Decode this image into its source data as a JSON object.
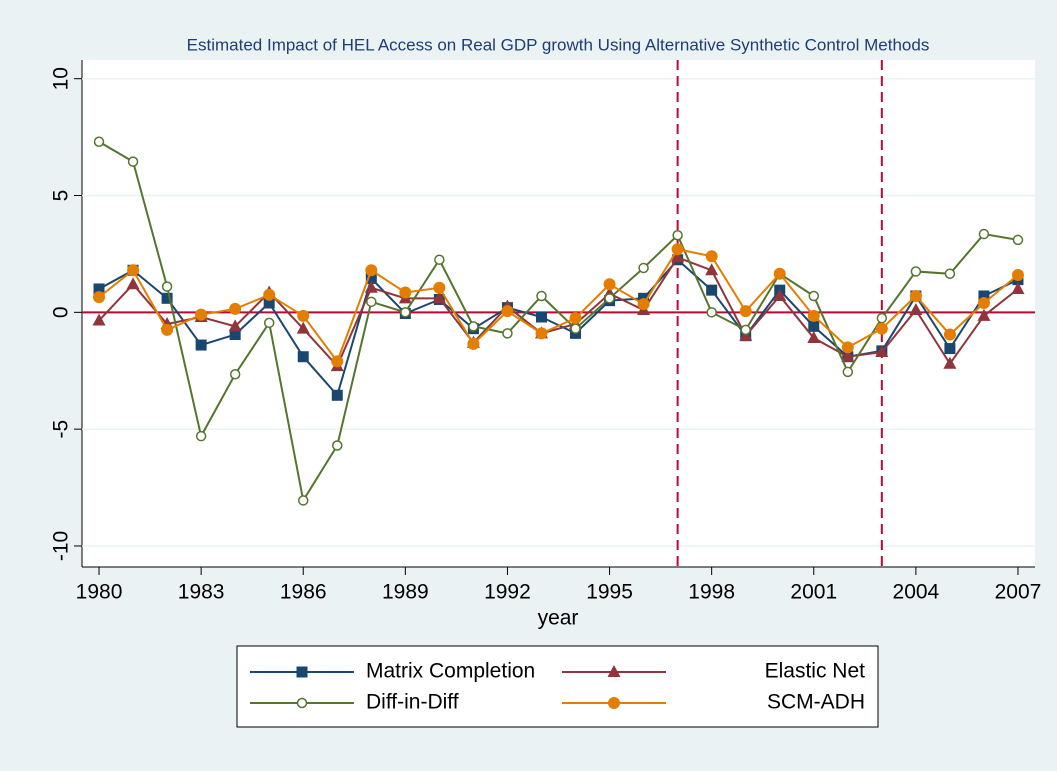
{
  "chart_data": {
    "type": "line",
    "title": "Estimated Impact of HEL Access on Real GDP growth Using Alternative Synthetic Control Methods",
    "x_label": "year",
    "x": [
      1980,
      1981,
      1982,
      1983,
      1984,
      1985,
      1986,
      1987,
      1988,
      1989,
      1990,
      1991,
      1992,
      1993,
      1994,
      1995,
      1996,
      1997,
      1998,
      1999,
      2000,
      2001,
      2002,
      2003,
      2004,
      2005,
      2006,
      2007
    ],
    "series": [
      {
        "name": "Matrix Completion",
        "color": "#1a476f",
        "marker": "square",
        "values": [
          1.0,
          1.8,
          0.6,
          -1.4,
          -0.95,
          0.4,
          -1.9,
          -3.55,
          1.45,
          -0.05,
          0.55,
          -0.7,
          0.2,
          -0.2,
          -0.9,
          0.5,
          0.6,
          2.25,
          0.95,
          -1.0,
          0.95,
          -0.6,
          -1.9,
          -1.65,
          0.7,
          -1.55,
          0.7,
          1.4
        ]
      },
      {
        "name": "Elastic Net",
        "color": "#90353b",
        "marker": "triangle",
        "values": [
          -0.35,
          1.2,
          -0.5,
          -0.2,
          -0.6,
          0.85,
          -0.7,
          -2.3,
          1.05,
          0.6,
          0.6,
          -1.3,
          0.25,
          -0.9,
          -0.5,
          0.8,
          0.1,
          2.35,
          1.8,
          -1.0,
          0.7,
          -1.1,
          -1.9,
          -1.7,
          0.1,
          -2.2,
          -0.15,
          1.0
        ]
      },
      {
        "name": "Diff-in-Diff",
        "color": "#55752f",
        "marker": "hollow-circle",
        "values": [
          7.3,
          6.45,
          1.1,
          -5.3,
          -2.65,
          -0.45,
          -8.05,
          -5.7,
          0.45,
          0.0,
          2.25,
          -0.6,
          -0.9,
          0.7,
          -0.7,
          0.6,
          1.9,
          3.3,
          0.0,
          -0.75,
          1.65,
          0.7,
          -2.55,
          -0.25,
          1.75,
          1.65,
          3.35,
          3.1
        ]
      },
      {
        "name": "SCM-ADH",
        "color": "#e37e00",
        "marker": "circle",
        "values": [
          0.65,
          1.8,
          -0.75,
          -0.1,
          0.15,
          0.75,
          -0.15,
          -2.1,
          1.8,
          0.85,
          1.05,
          -1.35,
          0.05,
          -0.9,
          -0.25,
          1.2,
          0.35,
          2.7,
          2.4,
          0.05,
          1.65,
          -0.15,
          -1.5,
          -0.7,
          0.7,
          -0.95,
          0.4,
          1.6
        ]
      }
    ],
    "xlim": [
      1979.5,
      2007.5
    ],
    "xticks": [
      1980,
      1983,
      1986,
      1989,
      1992,
      1995,
      1998,
      2001,
      2004,
      2007
    ],
    "ylim": [
      -10.9,
      10.8
    ],
    "yticks": [
      -10,
      -5,
      0,
      5,
      10
    ],
    "grid": true,
    "reference_lines": {
      "x": [
        1997,
        2003
      ],
      "y": [
        0
      ],
      "color": "#c10534"
    },
    "legend": "bottom"
  }
}
